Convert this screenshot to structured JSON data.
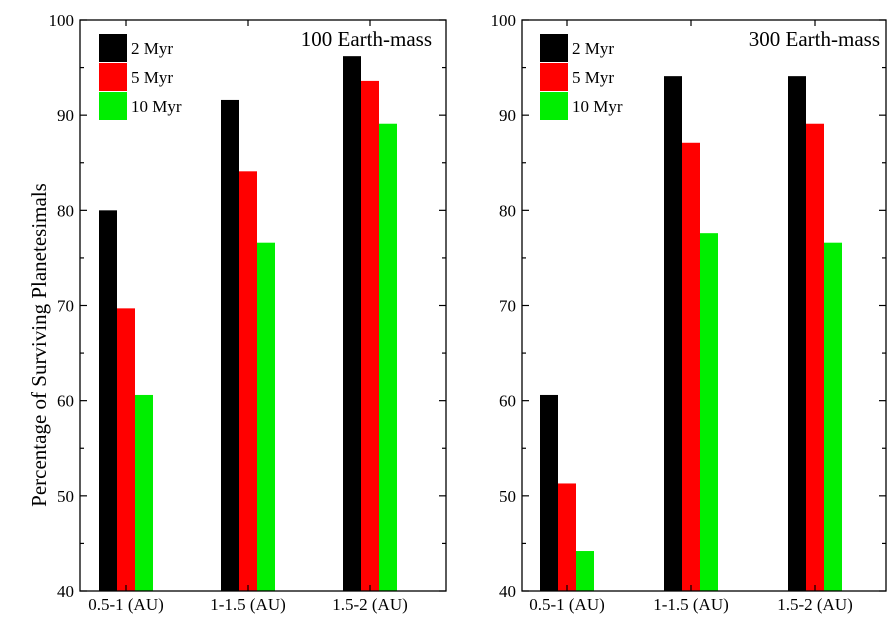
{
  "chart_data": [
    {
      "type": "bar",
      "title": "100 Earth-mass",
      "ylabel": "Percentage of Surviving Planetesimals",
      "xlabel": "",
      "categories": [
        "0.5-1 (AU)",
        "1-1.5 (AU)",
        "1.5-2 (AU)"
      ],
      "series": [
        {
          "name": "2 Myr",
          "color": "#000000",
          "values": [
            80.0,
            91.6,
            96.2
          ]
        },
        {
          "name": "5 Myr",
          "color": "#ff0000",
          "values": [
            69.7,
            84.1,
            93.6
          ]
        },
        {
          "name": "10 Myr",
          "color": "#00ee00",
          "values": [
            60.6,
            76.6,
            89.1
          ]
        }
      ],
      "ylim": [
        40,
        100
      ],
      "yticks": [
        40,
        50,
        60,
        70,
        80,
        90,
        100
      ],
      "legend_position": "top-left",
      "grid": false
    },
    {
      "type": "bar",
      "title": "300 Earth-mass",
      "ylabel": "",
      "xlabel": "",
      "categories": [
        "0.5-1 (AU)",
        "1-1.5 (AU)",
        "1.5-2 (AU)"
      ],
      "series": [
        {
          "name": "2 Myr",
          "color": "#000000",
          "values": [
            60.6,
            94.1,
            94.1
          ]
        },
        {
          "name": "5 Myr",
          "color": "#ff0000",
          "values": [
            51.3,
            87.1,
            89.1
          ]
        },
        {
          "name": "10 Myr",
          "color": "#00ee00",
          "values": [
            44.2,
            77.6,
            76.6
          ]
        }
      ],
      "ylim": [
        40,
        100
      ],
      "yticks": [
        40,
        50,
        60,
        70,
        80,
        90,
        100
      ],
      "legend_position": "top-left",
      "grid": false
    }
  ]
}
